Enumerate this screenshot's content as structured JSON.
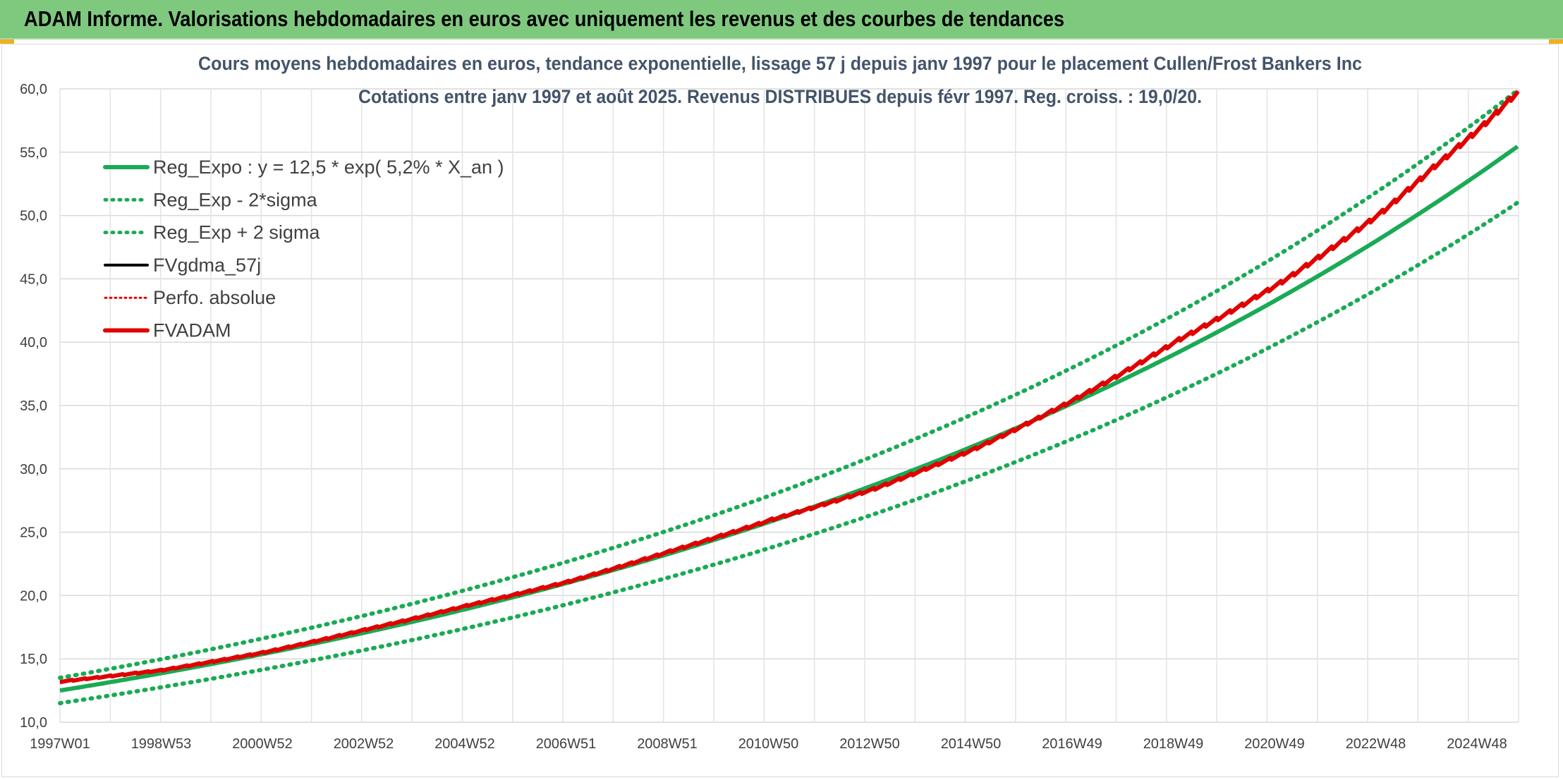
{
  "header": {
    "title": "ADAM Informe. Valorisations hebdomadaires en euros avec uniquement les revenus et des courbes de tendances"
  },
  "colors": {
    "banner": "#7fc97f",
    "trend": "#1aaa55",
    "band": "#1aaa55",
    "gdma": "#000000",
    "perfo": "#e00000",
    "fvadam": "#e00000"
  },
  "chart_data": {
    "type": "line",
    "title_lines": [
      "Cours moyens hebdomadaires en euros, tendance exponentielle, lissage 57 j depuis janv 1997 pour le placement Cullen/Frost Bankers Inc",
      "Cotations entre janv 1997 et août 2025. Revenus DISTRIBUES depuis févr 1997. Reg. croiss. : 19,0/20."
    ],
    "xlabel": "",
    "ylabel": "",
    "x_range_years": [
      1997.0,
      2025.67
    ],
    "x_ticks": [
      "1997W01",
      "1998W53",
      "2000W52",
      "2002W52",
      "2004W52",
      "2006W51",
      "2008W51",
      "2010W50",
      "2012W50",
      "2014W50",
      "2016W49",
      "2018W49",
      "2020W49",
      "2022W48",
      "2024W48"
    ],
    "ylim": [
      10,
      60
    ],
    "y_ticks": [
      "10,0",
      "15,0",
      "20,0",
      "25,0",
      "30,0",
      "35,0",
      "40,0",
      "45,0",
      "50,0",
      "55,0",
      "60,0"
    ],
    "grid": true,
    "legend_position": "top-left",
    "regression": {
      "a": 12.5,
      "rate": 0.052,
      "sigma_factor": 0.04
    },
    "series": [
      {
        "name": "Reg_Expo : y = 12,5 * exp( 5,2% *  X_an )",
        "style": "solid-green"
      },
      {
        "name": "Reg_Exp - 2*sigma",
        "style": "dotted-green",
        "offset_sigma": -2
      },
      {
        "name": "Reg_Exp + 2 sigma",
        "style": "dotted-green",
        "offset_sigma": 2
      },
      {
        "name": "FVgdma_57j",
        "style": "solid-black"
      },
      {
        "name": "Perfo. absolue",
        "style": "dotted-red"
      },
      {
        "name": "FVADAM",
        "style": "solid-red",
        "x": [
          1997.0,
          1999.0,
          2001.0,
          2003.0,
          2005.0,
          2007.0,
          2009.0,
          2011.0,
          2013.0,
          2015.0,
          2017.0,
          2019.0,
          2021.0,
          2023.0,
          2024.0,
          2025.0,
          2025.67
        ],
        "y": [
          13.2,
          14.1,
          15.5,
          17.3,
          19.2,
          21.1,
          23.5,
          26.0,
          28.4,
          31.6,
          35.6,
          40.2,
          44.7,
          50.3,
          53.8,
          57.2,
          59.8
        ]
      }
    ]
  }
}
